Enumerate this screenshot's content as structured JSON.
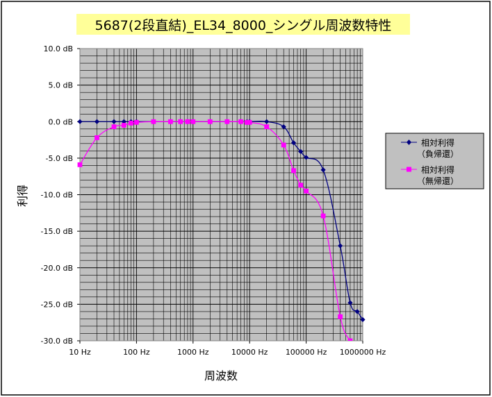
{
  "chart_data": {
    "type": "line",
    "title": "5687(2段直結)_EL34_8000_シングル周波数特性",
    "xlabel": "周波数",
    "ylabel": "利得",
    "x_scale": "log",
    "xlim": [
      10,
      1000000
    ],
    "ylim": [
      -30,
      10
    ],
    "x_ticks": [
      {
        "value": 10,
        "label": "10 Hz"
      },
      {
        "value": 100,
        "label": "100 Hz"
      },
      {
        "value": 1000,
        "label": "1000 Hz"
      },
      {
        "value": 10000,
        "label": "10000 Hz"
      },
      {
        "value": 100000,
        "label": "100000 Hz"
      },
      {
        "value": 1000000,
        "label": "1000000 Hz"
      }
    ],
    "y_ticks": [
      {
        "value": 10,
        "label": "10.0 dB"
      },
      {
        "value": 5,
        "label": "5.0 dB"
      },
      {
        "value": 0,
        "label": "0.0 dB"
      },
      {
        "value": -5,
        "label": "-5.0 dB"
      },
      {
        "value": -10,
        "label": "-10.0 dB"
      },
      {
        "value": -15,
        "label": "-15.0 dB"
      },
      {
        "value": -20,
        "label": "-20.0 dB"
      },
      {
        "value": -25,
        "label": "-25.0 dB"
      },
      {
        "value": -30,
        "label": "-30.0 dB"
      }
    ],
    "grid": true,
    "legend_position": "right",
    "series": [
      {
        "name": "相対利得\n（負帰還）",
        "legend_line1": "相対利得",
        "legend_line2": "（負帰還）",
        "color": "#000080",
        "marker": "diamond",
        "x": [
          10,
          20,
          40,
          60,
          80,
          100,
          200,
          400,
          600,
          800,
          1000,
          2000,
          4000,
          7000,
          9000,
          10000,
          20000,
          40000,
          60000,
          80000,
          100000,
          200000,
          400000,
          600000,
          800000,
          1000000
        ],
        "y": [
          0.0,
          0.0,
          0.0,
          0.0,
          0.0,
          0.0,
          0.0,
          0.0,
          0.0,
          0.0,
          0.0,
          0.0,
          0.0,
          0.0,
          0.0,
          0.0,
          0.0,
          -0.7,
          -2.9,
          -4.1,
          -4.9,
          -6.6,
          -17.0,
          -24.8,
          -26.0,
          -27.1
        ]
      },
      {
        "name": "相対利得\n（無帰還）",
        "legend_line1": "相対利得",
        "legend_line2": "（無帰還）",
        "color": "#ff00ff",
        "marker": "square",
        "x": [
          10,
          20,
          40,
          60,
          80,
          100,
          200,
          400,
          600,
          800,
          1000,
          2000,
          4000,
          7000,
          9000,
          10000,
          20000,
          40000,
          60000,
          80000,
          100000,
          200000,
          400000,
          600000
        ],
        "y": [
          -5.9,
          -2.2,
          -0.7,
          -0.5,
          -0.2,
          -0.1,
          0.0,
          0.0,
          0.0,
          0.0,
          0.0,
          0.0,
          0.0,
          0.0,
          -0.1,
          -0.1,
          -0.7,
          -3.2,
          -6.7,
          -8.7,
          -9.5,
          -12.9,
          -26.7,
          -30.0
        ]
      }
    ]
  }
}
